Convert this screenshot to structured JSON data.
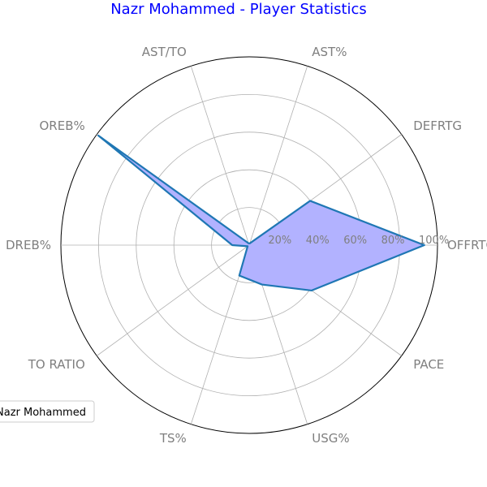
{
  "chart_data": {
    "type": "radar",
    "title": "Nazr Mohammed - Player Statistics",
    "categories": [
      "OFFRTG",
      "DEFRTG",
      "AST%",
      "AST/TO",
      "OREB%",
      "DREB%",
      "TO RATIO",
      "TS%",
      "USG%",
      "PACE"
    ],
    "rlim": [
      0,
      100
    ],
    "rticks": [
      20,
      40,
      60,
      80,
      100
    ],
    "rtick_labels": [
      "20%",
      "40%",
      "60%",
      "80%",
      "100%"
    ],
    "grid": true,
    "legend_position": "lower-left",
    "series": [
      {
        "name": "Nazr Mohammed",
        "values": [
          93,
          40,
          1,
          1,
          99,
          9,
          1,
          17,
          22,
          41
        ]
      }
    ],
    "colors": {
      "title": "#0000ff",
      "line": "#1f77b4",
      "fill": "#b2b2ff",
      "grid": "#b0b0b0",
      "outer_circle": "#000000",
      "label": "#7f7f7f"
    }
  }
}
